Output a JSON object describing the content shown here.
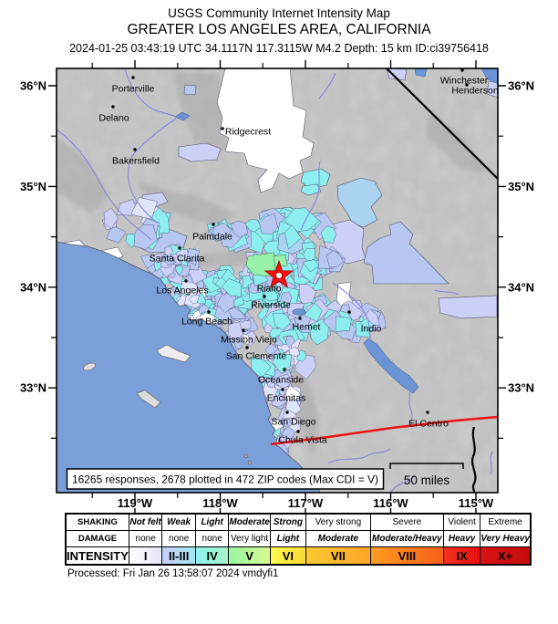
{
  "header": {
    "line1": "USGS Community Internet Intensity Map",
    "line2": "GREATER LOS ANGELES AREA, CALIFORNIA",
    "line3": "2024-01-25 03:43:19 UTC 34.1117N 117.3115W M4.2 Depth: 15 km ID:ci39756418"
  },
  "map": {
    "responses_box": "16265 responses, 2678 plotted in 472 ZIP codes (Max CDI = V)",
    "scale_label": "50 miles",
    "axis": {
      "lat": [
        "36°N",
        "35°N",
        "34°N",
        "33°N"
      ],
      "lon": [
        "119°W",
        "118°W",
        "117°W",
        "116°W",
        "115°W"
      ]
    },
    "cities": [
      {
        "name": "Porterville"
      },
      {
        "name": "Delano"
      },
      {
        "name": "Bakersfield"
      },
      {
        "name": "Ridgecrest"
      },
      {
        "name": "Winchester"
      },
      {
        "name": "Henderson"
      },
      {
        "name": "Palmdale"
      },
      {
        "name": "Santa Clarita"
      },
      {
        "name": "Los Angeles"
      },
      {
        "name": "Long Beach"
      },
      {
        "name": "Mission Viejo"
      },
      {
        "name": "San Clemente"
      },
      {
        "name": "Rialto"
      },
      {
        "name": "Riverside"
      },
      {
        "name": "Hemet"
      },
      {
        "name": "Indio"
      },
      {
        "name": "Oceanside"
      },
      {
        "name": "Encinitas"
      },
      {
        "name": "San Diego"
      },
      {
        "name": "Chula Vista"
      },
      {
        "name": "El Centro"
      }
    ],
    "epicenter": {
      "lat": "34.1117N",
      "lon": "117.3115W",
      "magnitude": "M4.2"
    },
    "colors": {
      "ocean": "#7b9fd9",
      "land": "#cecece",
      "river": "#8585e0",
      "epicenter_star": "#f3100c",
      "mexico_border": "#ee1111"
    }
  },
  "legend": {
    "row_labels": [
      "SHAKING",
      "DAMAGE",
      "INTENSITY"
    ],
    "columns": [
      {
        "shaking": "Not felt",
        "damage": "none",
        "intensity": "I",
        "grad": [
          "#ffffff",
          "#e6e5f8"
        ]
      },
      {
        "shaking": "Weak",
        "damage": "none",
        "intensity": "II-III",
        "grad": [
          "#c9cdf8",
          "#9fe8f4"
        ]
      },
      {
        "shaking": "Light",
        "damage": "none",
        "intensity": "IV",
        "grad": [
          "#8ff2f0",
          "#a3f5c9"
        ]
      },
      {
        "shaking": "Moderate",
        "damage": "Very light",
        "intensity": "V",
        "grad": [
          "#98f7a2",
          "#d8fa8e"
        ]
      },
      {
        "shaking": "Strong",
        "damage": "Light",
        "intensity": "VI",
        "grad": [
          "#fafa4d",
          "#fcd936"
        ]
      },
      {
        "shaking": "Very strong",
        "damage": "Moderate",
        "intensity": "VII",
        "grad": [
          "#fcc936",
          "#fda529"
        ]
      },
      {
        "shaking": "Severe",
        "damage": "Moderate/Heavy",
        "intensity": "VIII",
        "grad": [
          "#fd9d23",
          "#f55f18"
        ]
      },
      {
        "shaking": "Violent",
        "damage": "Heavy",
        "intensity": "IX",
        "grad": [
          "#f23322",
          "#ea0e0e"
        ]
      },
      {
        "shaking": "Extreme",
        "damage": "Very Heavy",
        "intensity": "X+",
        "grad": [
          "#da1212",
          "#c50c0c"
        ]
      }
    ]
  },
  "footer": {
    "processed": "Processed: Fri Jan 26 13:58:07 2024 vmdyfi1"
  }
}
